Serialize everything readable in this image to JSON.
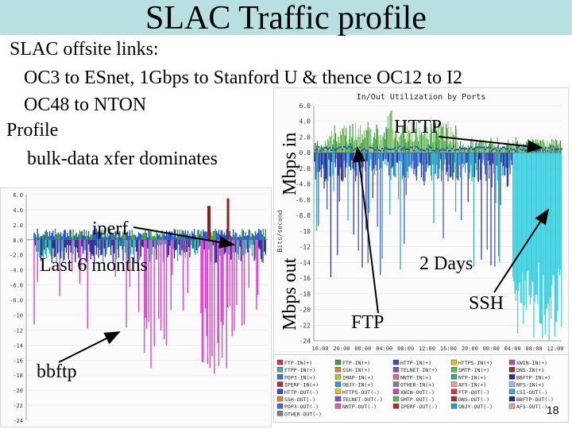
{
  "slide": {
    "title": "SLAC Traffic profile",
    "lines": {
      "l1": "SLAC offsite links:",
      "l2": "OC3 to ESnet, 1Gbps to Stanford U & thence OC12 to I2",
      "l3": "OC48 to NTON",
      "l4": "Profile",
      "l5": "bulk-data xfer dominates"
    },
    "labels": {
      "iperf": "iperf",
      "last6": "Last 6 months",
      "bbftp": "bbftp",
      "mbps_in": "Mbps in",
      "mbps_out": "Mbps out",
      "http": "HTTP",
      "two_days": "2 Days",
      "ssh": "SSH",
      "ftp": "FTP"
    },
    "slide_number": "18"
  },
  "right_chart": {
    "title": "In/Out Utilization by Ports",
    "y_axis_title": "Bits/second",
    "y_ticks": [
      "6.0",
      "4.0",
      "2.0",
      "0.0",
      "-2.0",
      "-4.0",
      "-6.0",
      "-8.0",
      "-10",
      "-12",
      "-14",
      "-16",
      "-18",
      "-20",
      "-22",
      "-24"
    ],
    "x_ticks": [
      "16:00",
      "20:00",
      "00:00",
      "04:00",
      "08:00",
      "12:00",
      "16:00",
      "20:00",
      "00:00",
      "04:00",
      "08:00",
      "12:00"
    ]
  },
  "left_chart": {
    "y_ticks": [
      "6.0",
      "4.0",
      "2.0",
      "0.0",
      "-2.0",
      "-4.0",
      "-6.0",
      "-8.0",
      "-10",
      "-12",
      "-14",
      "-16",
      "-18",
      "-20",
      "-22",
      "-24"
    ]
  },
  "legend": {
    "items": [
      {
        "text": "FTP-IN(+)",
        "color": "#e0303a"
      },
      {
        "text": "FTP-IN(+)",
        "color": "#3aa03a"
      },
      {
        "text": "HTTP-IN(+)",
        "color": "#3050c8"
      },
      {
        "text": "HTTPS-IN(+)",
        "color": "#e0c020"
      },
      {
        "text": "XWIN-IN(+)",
        "color": "#c040c0"
      },
      {
        "text": "FTPP-IN(+)",
        "color": "#30b0b0"
      },
      {
        "text": "SSH-IN(+)",
        "color": "#e08030"
      },
      {
        "text": "TELNET-IN(+)",
        "color": "#8050c0"
      },
      {
        "text": "SMTP-IN(+)",
        "color": "#50c050"
      },
      {
        "text": "DNS-IN(+)",
        "color": "#a03030"
      },
      {
        "text": "POP3-IN(+)",
        "color": "#3070e0"
      },
      {
        "text": "IMAP-IN(+)",
        "color": "#c0c040"
      },
      {
        "text": "NNTP-IN(+)",
        "color": "#e060a0"
      },
      {
        "text": "NTP-IN(+)",
        "color": "#40a080"
      },
      {
        "text": "BBFTP-IN(+)",
        "color": "#2a2a90"
      },
      {
        "text": "IPERF-IN(+)",
        "color": "#d02020"
      },
      {
        "text": "OBJY-IN(+)",
        "color": "#20a0e0"
      },
      {
        "text": "OTHER-IN(+)",
        "color": "#808080"
      },
      {
        "text": "AFS-IN(+)",
        "color": "#e0a0a0"
      },
      {
        "text": "NFS-IN(+)",
        "color": "#90c0e0"
      },
      {
        "text": "HTTP-OUT(-)",
        "color": "#3050c8"
      },
      {
        "text": "HTTPS-OUT(-)",
        "color": "#e0c020"
      },
      {
        "text": "XWIN-OUT(-)",
        "color": "#c040c0"
      },
      {
        "text": "FTP-OUT(-)",
        "color": "#e0303a"
      },
      {
        "text": "CSI-OUT(-)",
        "color": "#30b0b0"
      },
      {
        "text": "SSH-OUT(-)",
        "color": "#e08030"
      },
      {
        "text": "TELNET-OUT(-)",
        "color": "#8050c0"
      },
      {
        "text": "SMTP-OUT(-)",
        "color": "#50c050"
      },
      {
        "text": "DNS-OUT(-)",
        "color": "#a03030"
      },
      {
        "text": "BBFTP-OUT(-)",
        "color": "#2a2a90"
      },
      {
        "text": "POP3-OUT(-)",
        "color": "#3070e0"
      },
      {
        "text": "NNTP-OUT(-)",
        "color": "#e060a0"
      },
      {
        "text": "IPERF-OUT(-)",
        "color": "#d02020"
      },
      {
        "text": "OBJY-OUT(-)",
        "color": "#20a0e0"
      },
      {
        "text": "AFS-OUT(-)",
        "color": "#e0a0a0"
      },
      {
        "text": "OTHER-OUT(-)",
        "color": "#808080"
      }
    ]
  },
  "colors": {
    "title_bar": "#b9e0e0",
    "arrow": "#000000"
  }
}
